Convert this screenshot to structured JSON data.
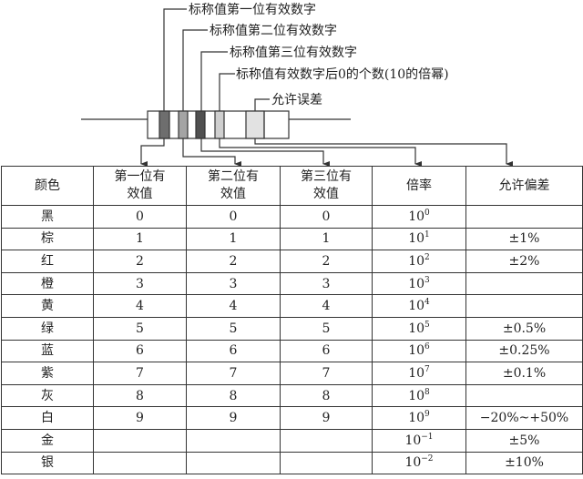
{
  "labels": {
    "band1": "标称值第一位有效数字",
    "band2": "标称值第二位有效数字",
    "band3": "标称值第三位有效数字",
    "band4": "标称值有效数字后0的个数(10的倍幂)",
    "band5": "允许误差"
  },
  "band_colors": [
    "#6e6e6e",
    "#a4a4a4",
    "#505050",
    "#cfcfcf",
    "#e2e2e2"
  ],
  "table": {
    "headers": [
      "颜色",
      "第一位有效值",
      "第二位有效值",
      "第三位有效值",
      "倍率",
      "允许偏差"
    ],
    "rows": [
      {
        "color": "黑",
        "d1": "0",
        "d2": "0",
        "d3": "0",
        "base": "10",
        "exp": "0",
        "tol": ""
      },
      {
        "color": "棕",
        "d1": "1",
        "d2": "1",
        "d3": "1",
        "base": "10",
        "exp": "1",
        "tol": "±1%"
      },
      {
        "color": "红",
        "d1": "2",
        "d2": "2",
        "d3": "2",
        "base": "10",
        "exp": "2",
        "tol": "±2%"
      },
      {
        "color": "橙",
        "d1": "3",
        "d2": "3",
        "d3": "3",
        "base": "10",
        "exp": "3",
        "tol": ""
      },
      {
        "color": "黄",
        "d1": "4",
        "d2": "4",
        "d3": "4",
        "base": "10",
        "exp": "4",
        "tol": ""
      },
      {
        "color": "绿",
        "d1": "5",
        "d2": "5",
        "d3": "5",
        "base": "10",
        "exp": "5",
        "tol": "±0.5%"
      },
      {
        "color": "蓝",
        "d1": "6",
        "d2": "6",
        "d3": "6",
        "base": "10",
        "exp": "6",
        "tol": "±0.25%"
      },
      {
        "color": "紫",
        "d1": "7",
        "d2": "7",
        "d3": "7",
        "base": "10",
        "exp": "7",
        "tol": "±0.1%"
      },
      {
        "color": "灰",
        "d1": "8",
        "d2": "8",
        "d3": "8",
        "base": "10",
        "exp": "8",
        "tol": ""
      },
      {
        "color": "白",
        "d1": "9",
        "d2": "9",
        "d3": "9",
        "base": "10",
        "exp": "9",
        "tol": "−20%~+50%"
      },
      {
        "color": "金",
        "d1": "",
        "d2": "",
        "d3": "",
        "base": "10",
        "exp": "−1",
        "tol": "±5%"
      },
      {
        "color": "银",
        "d1": "",
        "d2": "",
        "d3": "",
        "base": "10",
        "exp": "−2",
        "tol": "±10%"
      }
    ]
  }
}
